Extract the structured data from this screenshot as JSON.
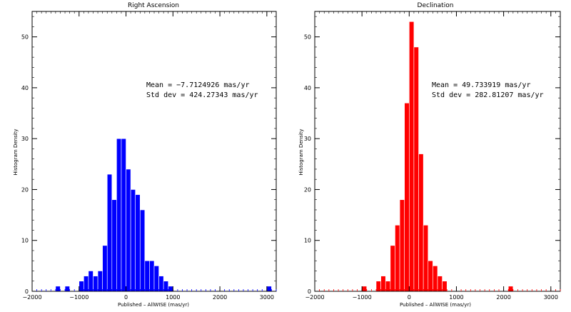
{
  "chart_data": [
    {
      "type": "bar",
      "title": "Right Ascension",
      "xlabel": "Published – AllWISE (mas/yr)",
      "ylabel": "Histogram Density",
      "xlim": [
        -2000,
        3200
      ],
      "ylim": [
        0,
        55
      ],
      "xticks": [
        -2000,
        -1000,
        0,
        1000,
        2000,
        3000
      ],
      "yticks": [
        0,
        10,
        20,
        30,
        40,
        50
      ],
      "bin_width": 100,
      "color": "#0000ff",
      "edge_color": "#ffffff",
      "annotations": [
        "Mean = −7.7124926 mas/yr",
        "Std dev = 424.27343 mas/yr"
      ],
      "bins": [
        {
          "x": -1450,
          "value": 1
        },
        {
          "x": -1250,
          "value": 1
        },
        {
          "x": -950,
          "value": 2
        },
        {
          "x": -850,
          "value": 3
        },
        {
          "x": -750,
          "value": 4
        },
        {
          "x": -650,
          "value": 3
        },
        {
          "x": -550,
          "value": 4
        },
        {
          "x": -450,
          "value": 9
        },
        {
          "x": -350,
          "value": 23
        },
        {
          "x": -250,
          "value": 18
        },
        {
          "x": -150,
          "value": 30
        },
        {
          "x": -50,
          "value": 30
        },
        {
          "x": 50,
          "value": 24
        },
        {
          "x": 150,
          "value": 20
        },
        {
          "x": 250,
          "value": 19
        },
        {
          "x": 350,
          "value": 16
        },
        {
          "x": 450,
          "value": 6
        },
        {
          "x": 550,
          "value": 6
        },
        {
          "x": 650,
          "value": 5
        },
        {
          "x": 750,
          "value": 3
        },
        {
          "x": 850,
          "value": 2
        },
        {
          "x": 950,
          "value": 1
        },
        {
          "x": 3050,
          "value": 1
        }
      ]
    },
    {
      "type": "bar",
      "title": "Declination",
      "xlabel": "Published – AllWISE (mas/yr)",
      "ylabel": "Histogram Density",
      "xlim": [
        -2000,
        3200
      ],
      "ylim": [
        0,
        55
      ],
      "xticks": [
        -2000,
        -1000,
        0,
        1000,
        2000,
        3000
      ],
      "yticks": [
        0,
        10,
        20,
        30,
        40,
        50
      ],
      "bin_width": 100,
      "color": "#ff0000",
      "edge_color": "#ffffff",
      "annotations": [
        "Mean = 49.733919 mas/yr",
        "Std dev = 282.81207 mas/yr"
      ],
      "bins": [
        {
          "x": -950,
          "value": 1
        },
        {
          "x": -650,
          "value": 2
        },
        {
          "x": -550,
          "value": 3
        },
        {
          "x": -450,
          "value": 2
        },
        {
          "x": -350,
          "value": 9
        },
        {
          "x": -250,
          "value": 13
        },
        {
          "x": -150,
          "value": 18
        },
        {
          "x": -50,
          "value": 37
        },
        {
          "x": 50,
          "value": 53
        },
        {
          "x": 150,
          "value": 48
        },
        {
          "x": 250,
          "value": 27
        },
        {
          "x": 350,
          "value": 13
        },
        {
          "x": 450,
          "value": 6
        },
        {
          "x": 550,
          "value": 5
        },
        {
          "x": 650,
          "value": 3
        },
        {
          "x": 750,
          "value": 2
        },
        {
          "x": 2150,
          "value": 1
        }
      ]
    }
  ]
}
